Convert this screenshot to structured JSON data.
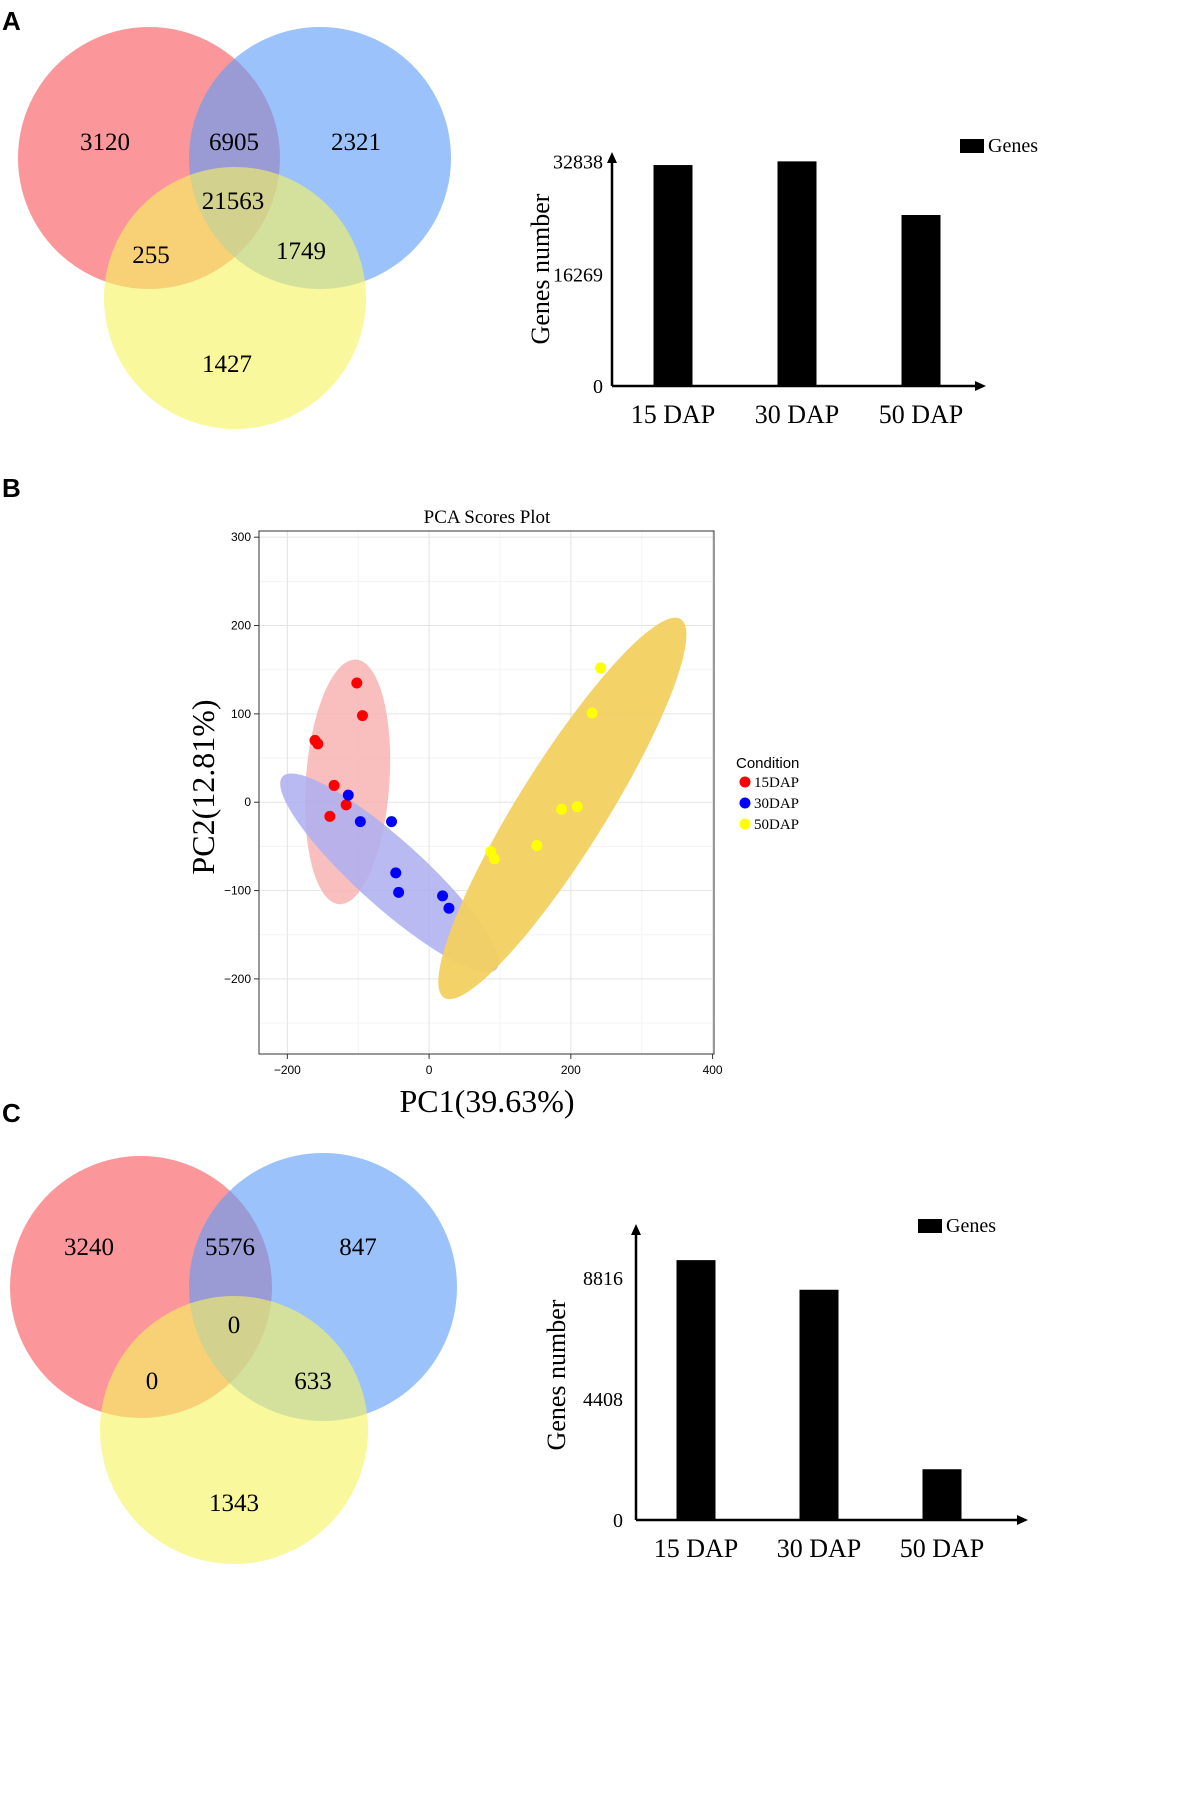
{
  "figure": {
    "panel_labels": [
      "A",
      "B",
      "C"
    ]
  },
  "chart_data": [
    {
      "id": "venn_a",
      "type": "venn",
      "colors": [
        "#f8575c",
        "#5e9cf8",
        "#f6f461"
      ],
      "regions": {
        "only_1": "3120",
        "only_2": "2321",
        "only_3": "1427",
        "overlap_12": "6905",
        "overlap_13": "255",
        "overlap_23": "1749",
        "overlap_123": "21563"
      }
    },
    {
      "id": "bar_a",
      "type": "bar",
      "categories": [
        "15 DAP",
        "30 DAP",
        "50 DAP"
      ],
      "values": [
        32300,
        32838,
        25000
      ],
      "ylabel": "Genes number",
      "yticks": [
        0,
        16269,
        32838
      ],
      "ylim": [
        0,
        34500
      ],
      "legend": "Genes",
      "bar_color": "#000000"
    },
    {
      "id": "pca_b",
      "type": "scatter",
      "title": "PCA Scores Plot",
      "xlabel": "PC1(39.63%)",
      "ylabel": "PC2(12.81%)",
      "xlim": [
        -240,
        402
      ],
      "ylim": [
        -285,
        307
      ],
      "xticks": [
        -200,
        0,
        200,
        400
      ],
      "yticks": [
        -200,
        -100,
        0,
        100,
        200,
        300
      ],
      "grid": true,
      "legend_title": "Condition",
      "series": [
        {
          "name": "15DAP",
          "color": "#ff0000",
          "ellipse_color": "#f8b4b4",
          "x": [
            -102,
            -94,
            -161,
            -157,
            -134,
            -117,
            -140
          ],
          "y": [
            135,
            98,
            70,
            66,
            19,
            -3,
            -16
          ]
        },
        {
          "name": "30DAP",
          "color": "#0000ff",
          "ellipse_color": "#aeaef0",
          "x": [
            -114,
            -97,
            -53,
            -47,
            -43,
            19,
            28
          ],
          "y": [
            8,
            -22,
            -22,
            -80,
            -102,
            -106,
            -120
          ]
        },
        {
          "name": "50DAP",
          "color": "#ffff00",
          "ellipse_color": "#f2d060",
          "x": [
            242,
            230,
            209,
            187,
            152,
            87,
            92
          ],
          "y": [
            152,
            101,
            -5,
            -8,
            -49,
            -56,
            -64
          ]
        }
      ]
    },
    {
      "id": "venn_c",
      "type": "venn",
      "colors": [
        "#f8575c",
        "#5e9cf8",
        "#f6f461"
      ],
      "regions": {
        "only_1": "3240",
        "only_2": "847",
        "only_3": "1343",
        "overlap_12": "5576",
        "overlap_13": "0",
        "overlap_23": "633",
        "overlap_123": "0"
      }
    },
    {
      "id": "bar_c",
      "type": "bar",
      "categories": [
        "15 DAP",
        "30 DAP",
        "50 DAP"
      ],
      "values": [
        9470,
        8390,
        1850
      ],
      "ylabel": "Genes number",
      "yticks": [
        0,
        4408,
        8816
      ],
      "ylim": [
        0,
        10750
      ],
      "legend": "Genes",
      "bar_color": "#000000"
    }
  ]
}
